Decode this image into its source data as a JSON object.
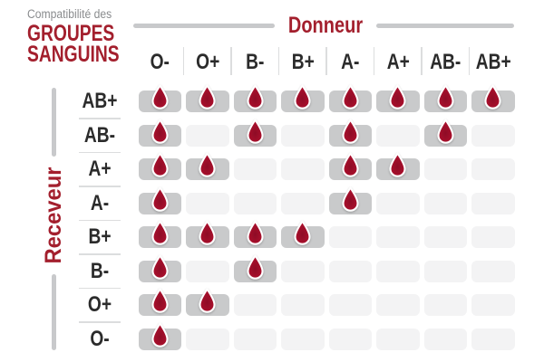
{
  "title": {
    "eyebrow": "Compatibilité des",
    "line1": "GROUPES",
    "line2": "SANGUINS"
  },
  "axes": {
    "donor_label": "Donneur",
    "receiver_label": "Receveur"
  },
  "donors": [
    "O-",
    "O+",
    "B-",
    "B+",
    "A-",
    "A+",
    "AB-",
    "AB+"
  ],
  "receivers": [
    "AB+",
    "AB-",
    "A+",
    "A-",
    "B+",
    "B-",
    "O+",
    "O-"
  ],
  "chart_data": {
    "type": "heatmap",
    "title": "Compatibilité des GROUPES SANGUINS",
    "x_label": "Donneur",
    "y_label": "Receveur",
    "x": [
      "O-",
      "O+",
      "B-",
      "B+",
      "A-",
      "A+",
      "AB-",
      "AB+"
    ],
    "y": [
      "AB+",
      "AB-",
      "A+",
      "A-",
      "B+",
      "B-",
      "O+",
      "O-"
    ],
    "values": [
      [
        1,
        1,
        1,
        1,
        1,
        1,
        1,
        1
      ],
      [
        1,
        0,
        1,
        0,
        1,
        0,
        1,
        0
      ],
      [
        1,
        1,
        0,
        0,
        1,
        1,
        0,
        0
      ],
      [
        1,
        0,
        0,
        0,
        1,
        0,
        0,
        0
      ],
      [
        1,
        1,
        1,
        1,
        0,
        0,
        0,
        0
      ],
      [
        1,
        0,
        1,
        0,
        0,
        0,
        0,
        0
      ],
      [
        1,
        1,
        0,
        0,
        0,
        0,
        0,
        0
      ],
      [
        1,
        0,
        0,
        0,
        0,
        0,
        0,
        0
      ]
    ],
    "value_meaning": {
      "1": "compatible - blood drop icon shown",
      "0": "not compatible - empty light cell"
    },
    "legend_position": "none",
    "grid": false
  },
  "colors": {
    "accent_red": "#a31f2d",
    "drop_red": "#a60f2b",
    "drop_red_dark": "#8e0c26",
    "subtitle_gray": "#8a8c8e",
    "header_text": "#2b2b2b",
    "cell_filled_gray": "#c9cacb",
    "cell_empty_gray": "#f3f3f4",
    "axis_line_gray": "#c8c9cb",
    "separator_gray": "#dcddde",
    "background": "#ffffff"
  },
  "icons": {
    "compatible": "blood-drop-icon"
  }
}
